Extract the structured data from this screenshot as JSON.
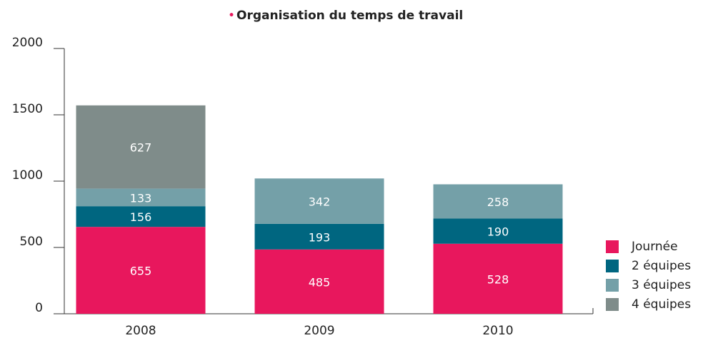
{
  "chart_data": {
    "type": "stacked_bar",
    "title": "Organisation du temps de travail",
    "categories": [
      "2008",
      "2009",
      "2010"
    ],
    "series": [
      {
        "name": "Journée",
        "color": "#e8175d",
        "values": [
          655,
          485,
          528
        ]
      },
      {
        "name": "2 équipes",
        "color": "#006680",
        "values": [
          156,
          193,
          190
        ]
      },
      {
        "name": "3 équipes",
        "color": "#74a0a8",
        "values": [
          133,
          342,
          258
        ]
      },
      {
        "name": "4 équipes",
        "color": "#7f8c8a",
        "values": [
          627,
          null,
          null
        ]
      }
    ],
    "ylim": [
      0,
      2000
    ],
    "yticks": [
      0,
      500,
      1000,
      1500,
      2000
    ],
    "legend": "right"
  }
}
